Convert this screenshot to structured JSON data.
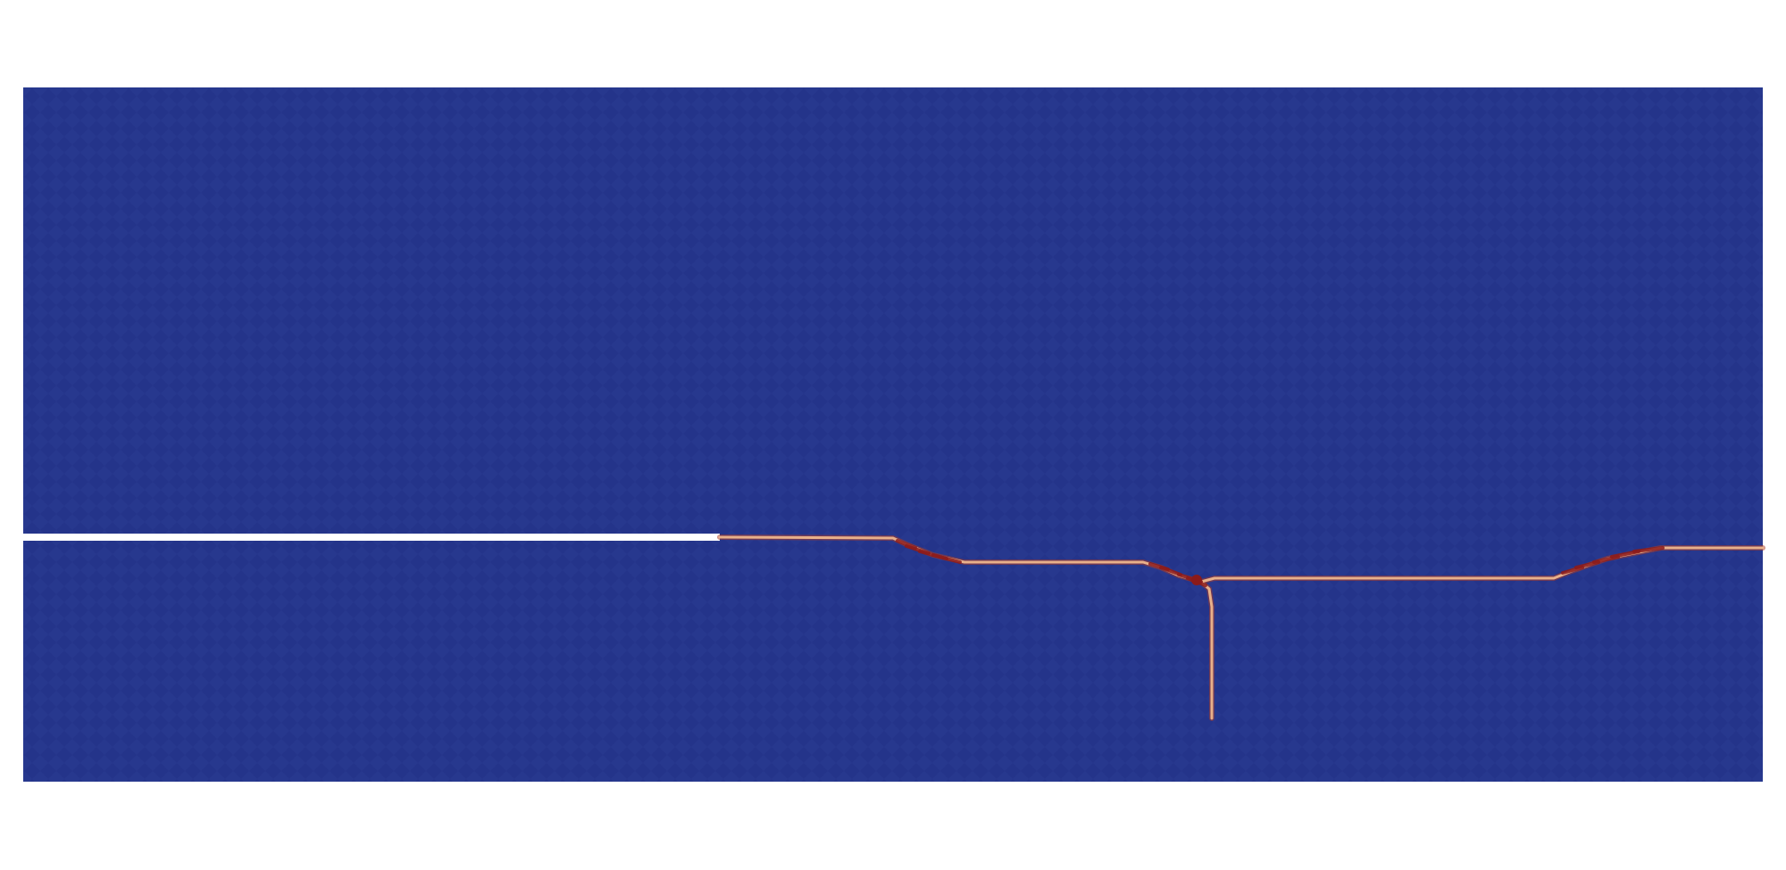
{
  "scene": {
    "background": "#ffffff",
    "field_color": "#24348a",
    "field_texture_color": "#2f3f95",
    "notch_color": "#ffffff",
    "crack_color_core": "#e8b08a",
    "crack_color_edge": "#a83a2a",
    "crack_color_tip": "#8b1a1a"
  }
}
